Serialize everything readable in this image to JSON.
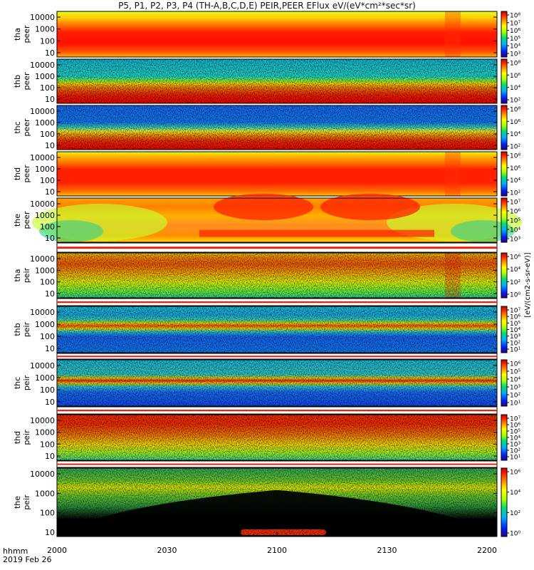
{
  "title": "P5, P1, P2, P3, P4 (TH-A,B,C,D,E) PEIR,PEER EFlux eV/(eV*cm²*sec*sr)",
  "colorbar_label": "[eV/(cm2-s-sr-eV)]",
  "time_axis": {
    "row1_label": "hhmm",
    "row2_label": "2019 Feb 26",
    "ticks": [
      "2000",
      "2030",
      "2100",
      "2130",
      "2200"
    ]
  },
  "chart_data": {
    "type": "heatmap",
    "x_range_hhmm": [
      "2000",
      "2200"
    ],
    "y_scale": "log",
    "y_ticks": [
      "10",
      "100",
      "1000",
      "10000"
    ],
    "panels": [
      {
        "probe": "tha",
        "kind": "peer",
        "cbar_ticks": [
          "10⁸",
          "10⁷",
          "10⁶",
          "10⁵",
          "10⁴",
          "10³"
        ]
      },
      {
        "probe": "thb",
        "kind": "peer",
        "cbar_ticks": [
          "10⁸",
          "10⁶",
          "10⁴",
          "10²"
        ]
      },
      {
        "probe": "thc",
        "kind": "peer",
        "cbar_ticks": [
          "10⁸",
          "10⁶",
          "10⁴",
          "10²"
        ]
      },
      {
        "probe": "thd",
        "kind": "peer",
        "cbar_ticks": [
          "10⁸",
          "10⁶",
          "10⁴",
          "10²"
        ]
      },
      {
        "probe": "the",
        "kind": "peer",
        "cbar_ticks": [
          "10⁷",
          "10⁶",
          "10⁵",
          "10⁴",
          "10³"
        ]
      },
      {
        "probe": "tha",
        "kind": "peir",
        "cbar_ticks": [
          "10⁶",
          "10⁴",
          "10²",
          "10⁰"
        ]
      },
      {
        "probe": "thb",
        "kind": "peir",
        "cbar_ticks": [
          "10⁷",
          "10⁶",
          "10⁵",
          "10⁴",
          "10³",
          "10²",
          "10¹"
        ]
      },
      {
        "probe": "thc",
        "kind": "peir",
        "cbar_ticks": [
          "10⁶",
          "10⁵",
          "10⁴",
          "10³",
          "10²",
          "10¹"
        ]
      },
      {
        "probe": "thd",
        "kind": "peir",
        "cbar_ticks": [
          "10⁷",
          "10⁶",
          "10⁵",
          "10⁴",
          "10³",
          "10²",
          "10¹"
        ]
      },
      {
        "probe": "the",
        "kind": "peir",
        "cbar_ticks": [
          "10⁶",
          "10⁴",
          "10²",
          "10⁰"
        ]
      }
    ],
    "grid": false,
    "legend": "colorbars-right"
  }
}
